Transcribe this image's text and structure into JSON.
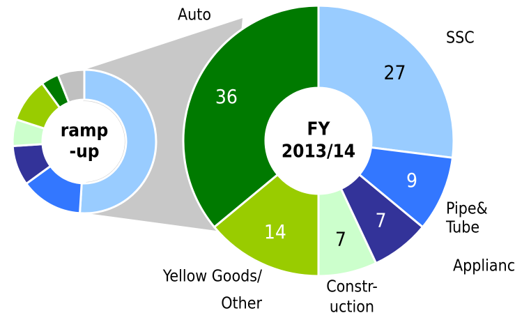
{
  "chart_data": [
    {
      "type": "pie",
      "title_lines": [
        "ramp",
        "-up"
      ],
      "values": [
        51,
        14,
        9,
        6,
        10,
        4,
        6
      ],
      "colors": [
        "#99ccff",
        "#3377ff",
        "#333399",
        "#ccffcc",
        "#99cc00",
        "#007a00",
        "#c0c0c0"
      ]
    },
    {
      "type": "pie",
      "title_lines": [
        "FY",
        "2013/14"
      ],
      "categories": [
        [
          "SSC"
        ],
        [
          "Pipe&",
          "Tube"
        ],
        [
          "Appliance"
        ],
        [
          "Constr-",
          "uction"
        ],
        [
          "Yellow Goods/",
          "Other"
        ],
        [
          "Auto"
        ]
      ],
      "values": [
        27,
        9,
        7,
        7,
        14,
        36
      ],
      "colors": [
        "#99ccff",
        "#3377ff",
        "#333399",
        "#ccffcc",
        "#99cc00",
        "#007a00"
      ],
      "label_colors": [
        "#000000",
        "#ffffff",
        "#ffffff",
        "#000000",
        "#ffffff",
        "#ffffff"
      ]
    }
  ]
}
